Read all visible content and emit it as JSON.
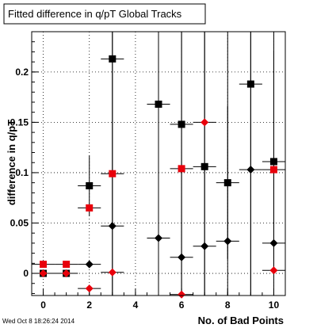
{
  "chart_data": {
    "type": "scatter",
    "title": "Fitted difference in q/pT  Global Tracks",
    "xlabel": "No. of Bad Points",
    "ylabel": "difference in q/pT",
    "xlim": [
      -0.5,
      10.5
    ],
    "ylim": [
      -0.022,
      0.24
    ],
    "x_ticks": [
      0,
      2,
      4,
      6,
      8,
      10
    ],
    "y_ticks": [
      0,
      0.05,
      0.1,
      0.15,
      0.2
    ],
    "x_tick_labels": [
      "0",
      "2",
      "4",
      "6",
      "8",
      "10"
    ],
    "y_tick_labels": [
      "0",
      "0.05",
      "0.1",
      "0.15",
      "0.2"
    ],
    "grid": true,
    "legend": "none",
    "timestamp": "Wed Oct  8 18:26:24 2014",
    "series": [
      {
        "marker": "square",
        "color": "#000000",
        "points": [
          {
            "x": 0,
            "y": 0.0,
            "yerr": 0.0
          },
          {
            "x": 1,
            "y": 0.0,
            "yerr": 0.0
          },
          {
            "x": 2,
            "y": 0.087,
            "yerr": 0.03
          },
          {
            "x": 3,
            "y": 0.213,
            "yerr": 0.24
          },
          {
            "x": 5,
            "y": 0.168,
            "yerr": 0.24
          },
          {
            "x": 6,
            "y": 0.148,
            "yerr": 0.24
          },
          {
            "x": 7,
            "y": 0.106,
            "yerr": 0.24
          },
          {
            "x": 8,
            "y": 0.09,
            "yerr": 0.076
          },
          {
            "x": 9,
            "y": 0.188,
            "yerr": 0.24
          },
          {
            "x": 10,
            "y": 0.111,
            "yerr": 0.11
          }
        ]
      },
      {
        "marker": "diamond",
        "color": "#000000",
        "points": [
          {
            "x": 0,
            "y": 0.0,
            "yerr": 0.0
          },
          {
            "x": 1,
            "y": 0.0,
            "yerr": 0.0
          },
          {
            "x": 2,
            "y": 0.009,
            "yerr": 0.0
          },
          {
            "x": 3,
            "y": 0.047,
            "yerr": 0.24
          },
          {
            "x": 5,
            "y": 0.035,
            "yerr": 0.24
          },
          {
            "x": 6,
            "y": 0.016,
            "yerr": 0.24
          },
          {
            "x": 7,
            "y": 0.027,
            "yerr": 0.24
          },
          {
            "x": 8,
            "y": 0.032,
            "yerr": 0.24
          },
          {
            "x": 9,
            "y": 0.103,
            "yerr": 0.24
          },
          {
            "x": 10,
            "y": 0.03,
            "yerr": 0.24
          }
        ]
      },
      {
        "marker": "square",
        "color": "#e8000b",
        "points": [
          {
            "x": 0,
            "y": 0.009,
            "yerr": 0.0
          },
          {
            "x": 1,
            "y": 0.009,
            "yerr": 0.0
          },
          {
            "x": 2,
            "y": 0.065,
            "yerr": 0.0
          },
          {
            "x": 3,
            "y": 0.099,
            "yerr": 0.0
          },
          {
            "x": 6,
            "y": 0.104,
            "yerr": 0.0
          },
          {
            "x": 10,
            "y": 0.103,
            "yerr": 0.0
          }
        ]
      },
      {
        "marker": "diamond",
        "color": "#e8000b",
        "points": [
          {
            "x": 0,
            "y": 0.0,
            "yerr": 0.0
          },
          {
            "x": 1,
            "y": 0.0,
            "yerr": 0.0
          },
          {
            "x": 2,
            "y": -0.015,
            "yerr": 0.0
          },
          {
            "x": 3,
            "y": 0.001,
            "yerr": 0.0
          },
          {
            "x": 6,
            "y": -0.021,
            "yerr": 0.0
          },
          {
            "x": 7,
            "y": 0.15,
            "yerr": 0.0
          },
          {
            "x": 10,
            "y": 0.003,
            "yerr": 0.0
          }
        ]
      }
    ]
  }
}
